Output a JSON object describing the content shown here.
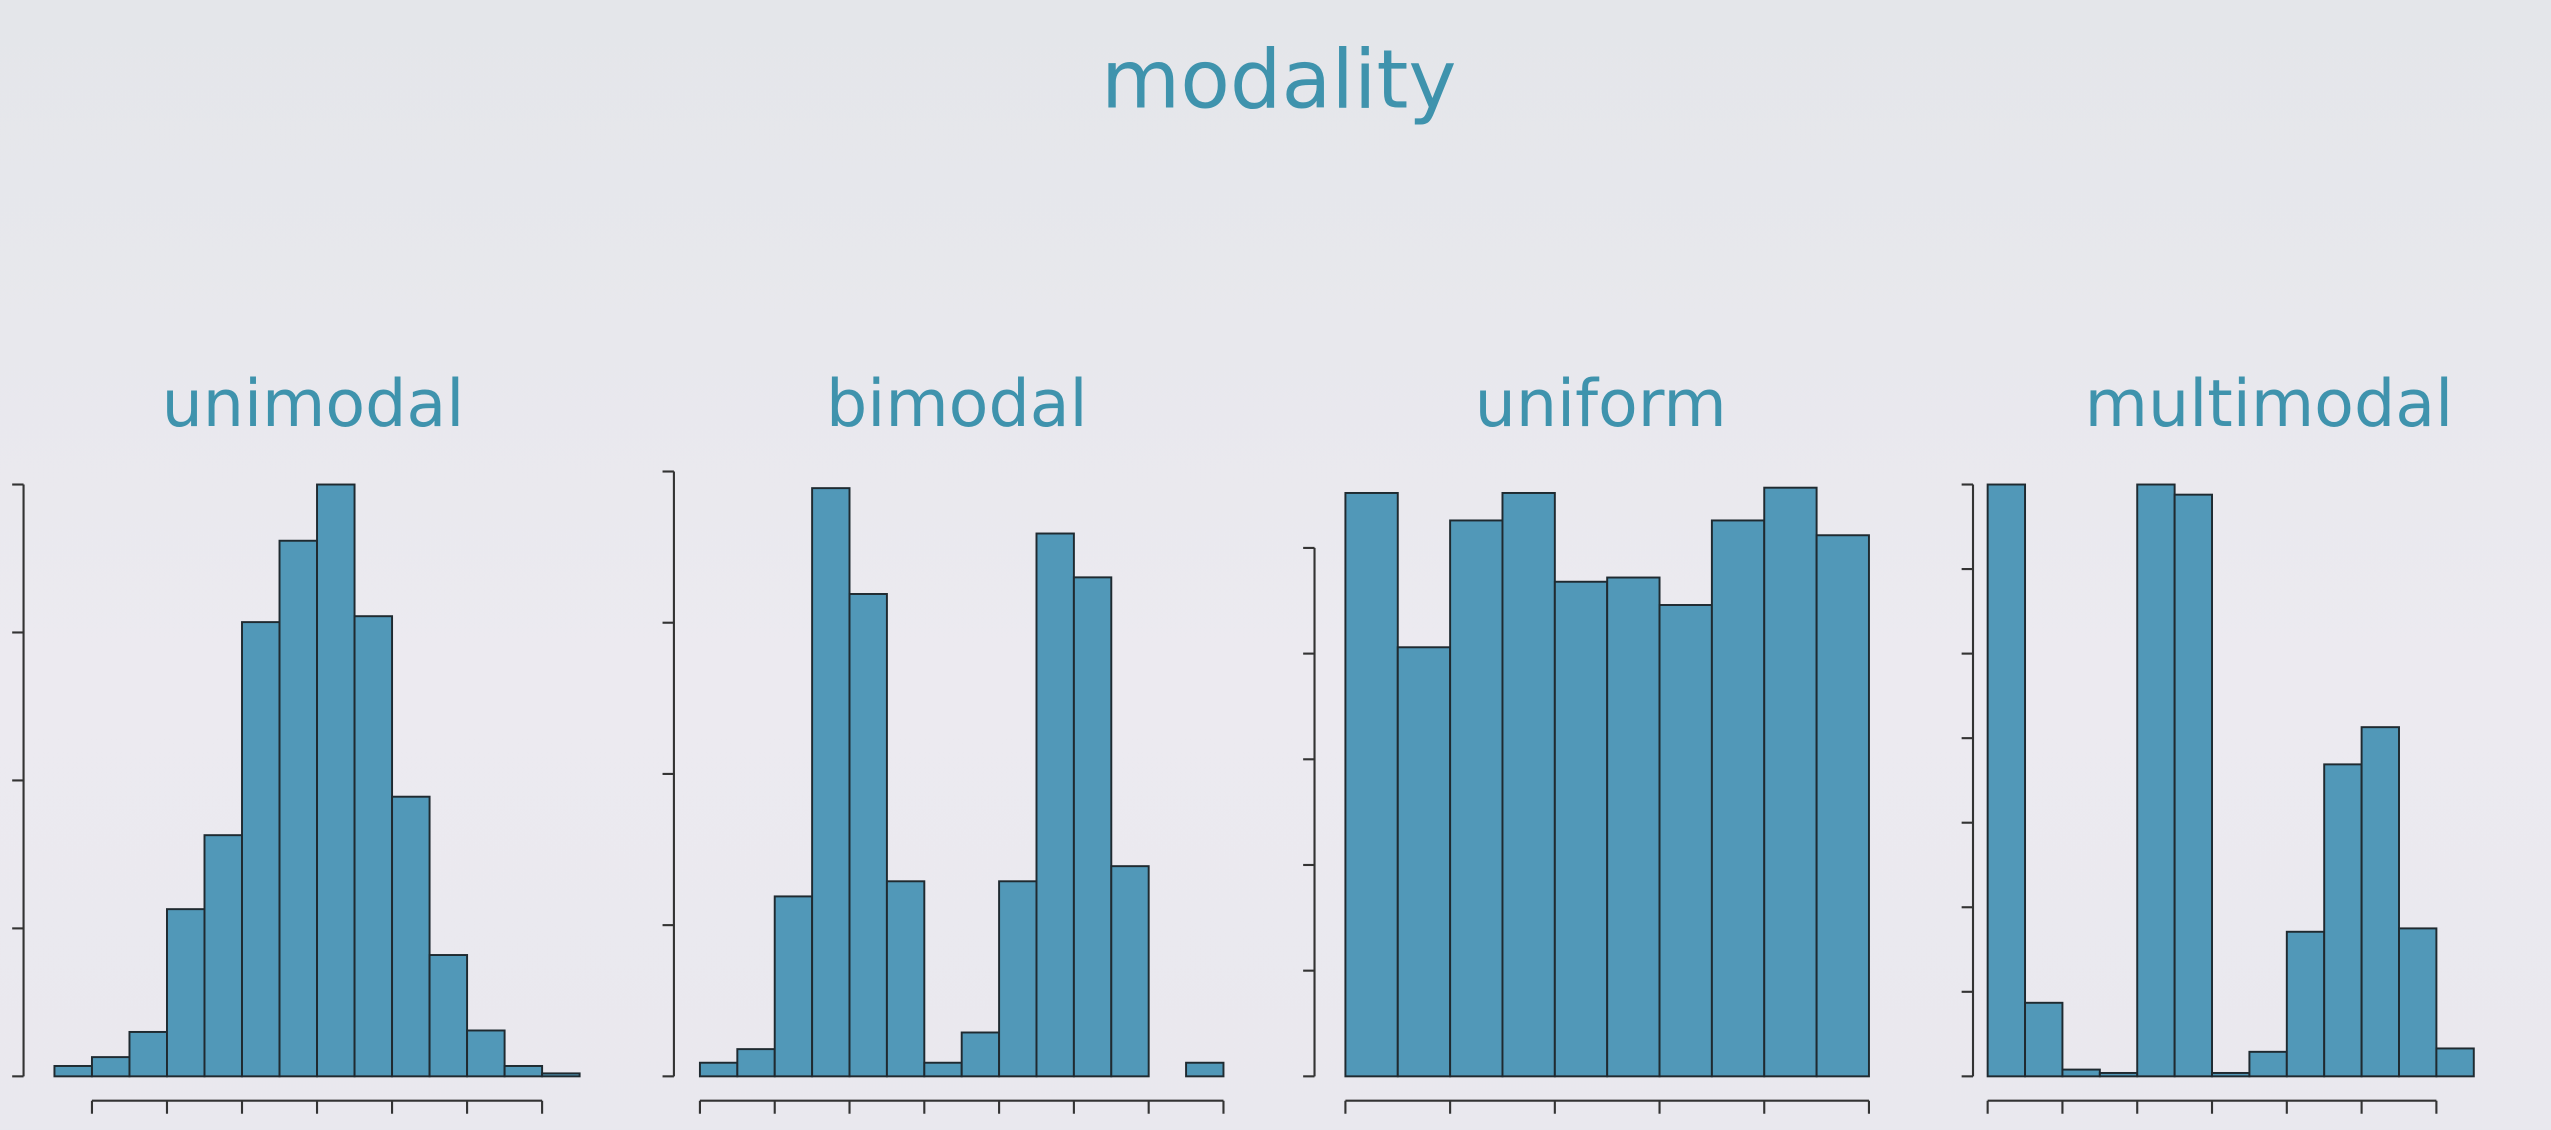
{
  "title": "modality",
  "chart_data": [
    {
      "type": "histogram",
      "title": "unimodal",
      "color": "#5198b8",
      "bins": [
        0,
        1,
        2,
        3,
        4,
        5,
        6,
        7,
        8,
        9,
        10,
        11,
        12,
        13,
        14
      ],
      "values": [
        0.07,
        0.13,
        0.3,
        1.13,
        1.63,
        3.07,
        3.62,
        4.0,
        3.11,
        1.89,
        0.82,
        0.31,
        0.07,
        0.02
      ],
      "xlim": [
        0,
        14
      ],
      "xticks": [
        1,
        3,
        5,
        7,
        9,
        11,
        13
      ],
      "ylim": [
        0,
        4
      ],
      "yticks": [
        0,
        1,
        2,
        3,
        4
      ]
    },
    {
      "type": "histogram",
      "title": "bimodal",
      "color": "#5198b8",
      "bins": [
        0,
        1,
        2,
        3,
        4,
        5,
        6,
        7,
        8,
        9,
        10,
        11,
        12,
        13,
        14
      ],
      "values": [
        0.09,
        0.18,
        1.19,
        3.89,
        3.19,
        1.29,
        0.09,
        0.29,
        1.29,
        3.59,
        3.3,
        1.39,
        0,
        0.09
      ],
      "xlim": [
        0,
        14
      ],
      "xticks": [
        0,
        2,
        4,
        6,
        8,
        10,
        12,
        14
      ],
      "ylim": [
        0,
        4
      ],
      "yticks": [
        0,
        1,
        2,
        3,
        4
      ]
    },
    {
      "type": "histogram",
      "title": "uniform",
      "color": "#5198b8",
      "bins": [
        0,
        1,
        2,
        3,
        4,
        5,
        6,
        7,
        8,
        9,
        10
      ],
      "values": [
        5.52,
        4.06,
        5.26,
        5.52,
        4.68,
        4.72,
        4.46,
        5.26,
        5.57,
        5.12
      ],
      "xlim": [
        0,
        10
      ],
      "xticks": [
        0,
        2,
        4,
        6,
        8,
        10
      ],
      "ylim": [
        0,
        5.6
      ],
      "yticks": [
        0,
        1,
        2,
        3,
        4,
        5
      ]
    },
    {
      "type": "histogram",
      "title": "multimodal",
      "color": "#5198b8",
      "bins": [
        0,
        1,
        2,
        3,
        4,
        5,
        6,
        7,
        8,
        9,
        10,
        11,
        12,
        13
      ],
      "values": [
        7.0,
        0.87,
        0.08,
        0.04,
        7.0,
        6.88,
        0.04,
        0.29,
        1.71,
        3.69,
        4.13,
        1.75,
        0.33
      ],
      "xlim": [
        0,
        13
      ],
      "xticks": [
        0,
        2,
        4,
        6,
        8,
        10,
        12
      ],
      "ylim": [
        0,
        7
      ],
      "yticks": [
        0,
        1,
        2,
        3,
        4,
        5,
        6,
        7
      ]
    }
  ]
}
